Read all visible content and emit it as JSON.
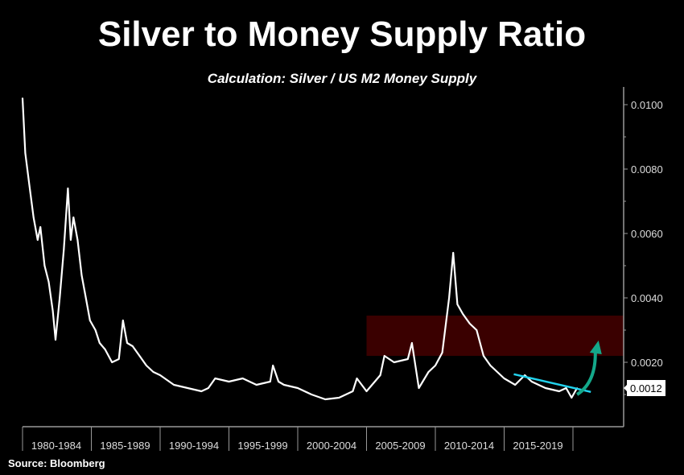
{
  "chart_data": {
    "type": "line",
    "title": "Silver to Money Supply Ratio",
    "subtitle": "Calculation: Silver / US M2 Money Supply",
    "source": "Source: Bloomberg",
    "xlabel": "",
    "ylabel": "",
    "ylim": [
      0,
      0.0105
    ],
    "xlim": [
      1980,
      2024
    ],
    "grid": false,
    "y_axis_position": "right",
    "y_ticks": [
      "0.0020",
      "0.0040",
      "0.0060",
      "0.0080",
      "0.0100"
    ],
    "y_tick_values": [
      0.002,
      0.004,
      0.006,
      0.008,
      0.01
    ],
    "x_categories": [
      "1980-1984",
      "1985-1989",
      "1990-1994",
      "1995-1999",
      "2000-2004",
      "2005-2009",
      "2010-2014",
      "2015-2019"
    ],
    "last_value_label": "0.0012",
    "series": [
      {
        "name": "Silver / US M2",
        "color": "#ffffff",
        "x": [
          1980.0,
          1980.2,
          1980.5,
          1980.8,
          1981.1,
          1981.3,
          1981.6,
          1981.9,
          1982.2,
          1982.4,
          1982.7,
          1983.0,
          1983.3,
          1983.5,
          1983.7,
          1984.0,
          1984.3,
          1984.6,
          1984.9,
          1985.3,
          1985.6,
          1986,
          1986.5,
          1987,
          1987.3,
          1987.6,
          1988,
          1988.5,
          1989,
          1989.5,
          1990,
          1991,
          1992,
          1993,
          1993.5,
          1994,
          1995,
          1996,
          1997,
          1998,
          1998.2,
          1998.6,
          1999,
          2000,
          2001,
          2002,
          2003,
          2004,
          2004.3,
          2005,
          2006,
          2006.3,
          2007,
          2008,
          2008.3,
          2008.8,
          2009.5,
          2010,
          2010.5,
          2011,
          2011.3,
          2011.6,
          2012,
          2012.5,
          2013,
          2013.5,
          2014,
          2015,
          2015.8,
          2016.5,
          2017,
          2018,
          2019,
          2019.5,
          2019.9,
          2020.3
        ],
        "y": [
          0.0102,
          0.0085,
          0.0075,
          0.0065,
          0.0058,
          0.0062,
          0.005,
          0.0045,
          0.0036,
          0.0027,
          0.004,
          0.0055,
          0.0074,
          0.0058,
          0.0065,
          0.0058,
          0.0047,
          0.004,
          0.0033,
          0.003,
          0.0026,
          0.0024,
          0.002,
          0.0021,
          0.0033,
          0.0026,
          0.0025,
          0.0022,
          0.0019,
          0.0017,
          0.0016,
          0.0013,
          0.0012,
          0.0011,
          0.0012,
          0.0015,
          0.0014,
          0.0015,
          0.0013,
          0.0014,
          0.0019,
          0.0014,
          0.0013,
          0.0012,
          0.001,
          0.00085,
          0.0009,
          0.0011,
          0.0015,
          0.0011,
          0.0016,
          0.0022,
          0.002,
          0.0021,
          0.0026,
          0.0012,
          0.0017,
          0.0019,
          0.0023,
          0.004,
          0.0054,
          0.0038,
          0.0035,
          0.0032,
          0.003,
          0.0022,
          0.0019,
          0.0015,
          0.0013,
          0.0016,
          0.0014,
          0.0012,
          0.0011,
          0.0012,
          0.0009,
          0.0012
        ]
      }
    ],
    "annotations": {
      "band": {
        "x_from": 2005.0,
        "y_from": 0.0022,
        "y_to": 0.00345,
        "color": "#3a0000"
      },
      "trendline": {
        "x": [
          2015.7,
          2021.3
        ],
        "y": [
          0.00163,
          0.00108
        ],
        "color": "#22d3ee"
      },
      "arrow": {
        "x": [
          2020.3,
          2021.8
        ],
        "y": [
          0.001,
          0.0026
        ],
        "color": "#14a88a"
      }
    }
  }
}
